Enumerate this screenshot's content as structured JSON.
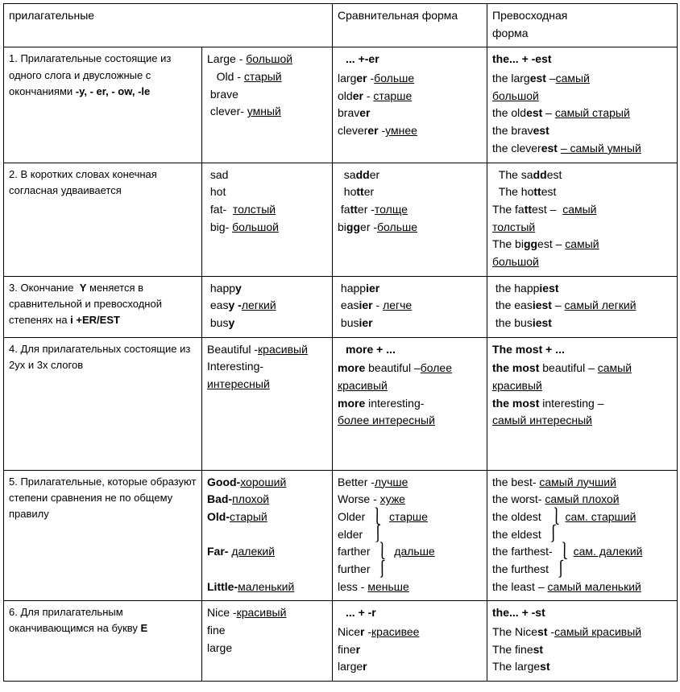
{
  "header": {
    "col1": "прилагательные",
    "col3": "Сравнительная форма",
    "col4": "Превосходная\nформа"
  },
  "rows": [
    {
      "rule": "1. Прилагательные состоящие из одного слога и двусложные с окончаниями  -y,  - er, - ow, -le",
      "rule_bold_tail": "-y,  - er, - ow, -le",
      "base_html": "Large -  <span class='u'>большой</span><br>&nbsp;&nbsp;&nbsp;Old  - <span class='u'>старый</span><br>&nbsp;brave<br>&nbsp;clever- <span class='u'>умный</span>",
      "comp_head": "... +-er",
      "comp_html": "larg<span class='b'>er</span> -<span class='u'>больше</span><br>old<span class='b'>er</span> - <span class='u'>старше</span><br>brav<span class='b'>er</span><br>clever<span class='b'>er</span> -<span class='u'>умнее</span>",
      "sup_head": "the... + -est",
      "sup_html": "the larg<span class='b'>est</span> –<span class='u'>самый</span><br><span class='u'>большой</span><br>the old<span class='b'>est</span> – <span class='u'>самый старый</span><br>the brav<span class='b'>est</span><br>the clever<span class='b'>est</span> <span class='u'>– самый умный</span>"
    },
    {
      "rule": "2. В коротких словах конечная согласная удваивается",
      "base_html": "&nbsp;sad<br>&nbsp;hot<br>&nbsp;fat- &nbsp;<span class='u'>толстый</span><br>&nbsp;big- <span class='u'>большой</span>",
      "comp_html": "&nbsp;&nbsp;sa<span class='b'>dd</span>er<br>&nbsp;&nbsp;ho<span class='b'>tt</span>er<br>&nbsp;fa<span class='b'>tt</span>er -<span class='u'>толще</span><br>bi<span class='b'>gg</span>er -<span class='u'>больше</span>",
      "sup_html": "&nbsp;&nbsp;The sa<span class='b'>dd</span>est<br>&nbsp;&nbsp;The ho<span class='b'>tt</span>est<br>The fa<span class='b'>tt</span>est – &nbsp;<span class='u'>самый</span><br><span class='u'>толстый</span><br>The bi<span class='b'>gg</span>est – <span class='u'>самый</span><br><span class='u'>большой</span>"
    },
    {
      "rule_html": "3. Окончание &nbsp;<span class='b'>Y</span> меняется в сравнительной и превосходной степенях на <span class='b'>i +ER/EST</span>",
      "base_html": "&nbsp;happ<span class='b'>y</span><br>&nbsp;eas<span class='b'>y -</span><span class='u'>легкий</span><br>&nbsp;bus<span class='b'>y</span>",
      "comp_html": "&nbsp;happ<span class='b'>ier</span><br>&nbsp;eas<span class='b'>ier</span> - <span class='u'>легче</span><br>&nbsp;bus<span class='b'>ier</span>",
      "sup_html": "&nbsp;the happ<span class='b'>iest</span><br>&nbsp;the eas<span class='b'>iest</span> – <span class='u'>самый легкий</span><br>&nbsp;the bus<span class='b'>iest</span>"
    },
    {
      "rule": " 4. Для прилагательных состоящие из 2ух и 3х слогов",
      "base_html": "Beautiful -<span class='u'>красивый</span><br>Interesting-<br><span class='u'>интересный</span>",
      "comp_head": "more + ...",
      "comp_html": "<span class='b'>more</span> beautiful –<span class='u'>более</span><br><span class='u'>красивый</span><br><span class='b'>more</span> interesting-<br><span class='u'>более интересный</span><br>&nbsp;<br>&nbsp;",
      "sup_head": "The most + ...",
      "sup_html": "<span class='b'>the most</span> beautiful – <span class='u'>самый</span><br><span class='u'>красивый</span><br><span class='b'>the most</span> interesting –<br><span class='u'>самый  интересный</span><br>&nbsp;<br>&nbsp;"
    },
    {
      "rule": "5. Прилагательные, которые образуют степени сравнения не по общему правилу",
      "base_html": "<span class='b'>Good-</span><span class='u'>хороший</span><br><span class='b'>Bad-</span><span class='u'>плохой</span><br><span class='b'>Old-</span><span class='u'>старый</span><br>&nbsp;<br><span class='b'>Far-</span> <span class='u'>далекий</span><br>&nbsp;<br><span class='b'>Little-</span><span class='u'>маленький</span>",
      "comp_html": "Better -<span class='u'>лучше</span><br>Worse - <span class='u'>хуже</span><br>Older <span class='brace'>⎱</span> <span class='u'>старше</span><br>elder &nbsp;<span class='brace'>⎰</span><br>farther <span class='brace'>⎱</span> <span class='u'>дальше</span><br>further <span class='brace'>⎰</span><br>less - <span class='u'>меньше</span>",
      "sup_html": "the best- <span class='u'>самый лучший</span><br>the worst- <span class='u'>самый плохой</span><br>the oldest &nbsp;<span class='brace'>⎱</span><span class='u'>сам. старший</span><br>the eldest <span class='brace'>⎰</span><br>the farthest- <span class='brace'>⎱</span><span class='u'>сам. далекий</span><br>the furthest <span class='brace'>⎰</span><br>the least – <span class='u'>самый маленький</span>"
    },
    {
      "rule_html": "6. Для прилагательным оканчивающимся на букву <span class='b'>E</span>",
      "base_html": "Nice -<span class='u'>красивый</span><br>fine<br>large",
      "comp_head": "... + -r",
      "comp_html": "Nice<span class='b'>r</span> -<span class='u'>красивее</span><br>fine<span class='b'>r</span><br>large<span class='b'>r</span>",
      "sup_head": "the... + -st",
      "sup_html": "The Nice<span class='b'>st</span> -<span class='u'>самый красивый</span><br>The fine<span class='b'>st</span><br>The large<span class='b'>st</span>"
    }
  ]
}
